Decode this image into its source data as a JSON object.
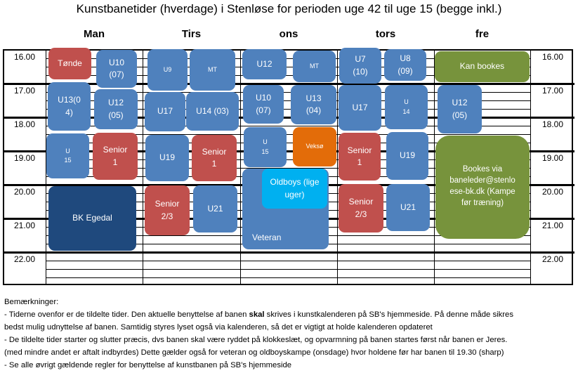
{
  "title": "Kunstbanetider (hverdage) i Stenløse for perioden uge 42 til uge 15 (begge inkl.)",
  "days": [
    "Man",
    "Tirs",
    "ons",
    "tors",
    "fre"
  ],
  "times": [
    "16.00",
    "17.00",
    "18.00",
    "19.00",
    "20.00",
    "21.00",
    "22.00"
  ],
  "blocks": {
    "man": [
      "Tønde",
      "U10\n(07)",
      "U13(0\n4)",
      "U12\n(05)",
      "U\n15",
      "Senior\n1",
      "BK Egedal"
    ],
    "tirs": [
      "U9",
      "MT",
      "U17",
      "U14 (03)",
      "U19",
      "Senior\n1",
      "Senior\n2/3",
      "U21"
    ],
    "ons": [
      "U12",
      "MT",
      "U10\n(07)",
      "U13\n(04)",
      "U\n15",
      "Veksø",
      "Veteran",
      "Oldboys (lige\nuger)"
    ],
    "tors": [
      "U7\n(10)",
      "U8\n(09)",
      "U17",
      "U\n14",
      "Senior\n1",
      "U19",
      "Senior\n2/3",
      "U21"
    ],
    "fre": [
      "Kan bookes",
      "U12\n(05)",
      "Bookes  via\nbaneleder@stenlo\nese-bk.dk (Kampe\nfør træning)"
    ]
  },
  "notes": {
    "heading": "Bemærkninger:",
    "l1a": "- Tiderne ovenfor er de tildelte tider. Den aktuelle benyttelse af banen ",
    "l1b": "skal",
    "l1c": " skrives i kunstkalenderen på SB's hjemmeside. På denne måde sikres",
    "l2": "bedst mulig udnyttelse af banen. Samtidig styres lyset også via kalenderen, så det er vigtigt at holde kalenderen opdateret",
    "l3": "- De tildelte tider starter og slutter præcis, dvs banen skal være ryddet på klokkeslæt, og opvarmning på banen startes først når banen er Jeres.",
    "l4": "(med mindre andet er aftalt indbyrdes) Dette gælder også for veteran og oldboyskampe (onsdage) hvor holdene før har banen til 19.30 (sharp)",
    "l5": "- Se alle øvrigt gældende regler for benyttelse af kunstbanen på SB's hjemmeside"
  },
  "colors": {
    "blue": "#4f81bd",
    "red": "#c0504d",
    "navy": "#1f497d",
    "green": "#77933c",
    "orange": "#e36c09",
    "cyan": "#00b0f0"
  }
}
